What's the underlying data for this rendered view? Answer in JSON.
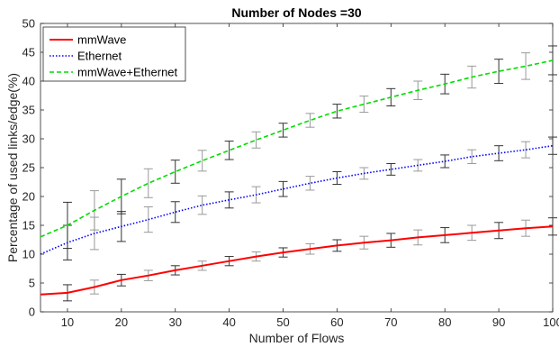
{
  "chart_data": {
    "type": "line",
    "title": "Number of Nodes =30",
    "xlabel": "Number of Flows",
    "ylabel": "Percentage of used links/edge(%)",
    "xlim": [
      5,
      100
    ],
    "ylim": [
      0,
      50
    ],
    "xticks": [
      10,
      20,
      30,
      40,
      50,
      60,
      70,
      80,
      90,
      100
    ],
    "yticks": [
      0,
      5,
      10,
      15,
      20,
      25,
      30,
      35,
      40,
      45,
      50
    ],
    "grid": false,
    "legend_position": "top-left",
    "x": [
      5,
      10,
      15,
      20,
      25,
      30,
      35,
      40,
      45,
      50,
      55,
      60,
      65,
      70,
      75,
      80,
      85,
      90,
      95,
      100
    ],
    "series": [
      {
        "name": "mmWave",
        "color": "#ff0000",
        "dash": "solid",
        "values": [
          3.0,
          3.3,
          4.3,
          5.5,
          6.3,
          7.2,
          8.0,
          8.8,
          9.6,
          10.3,
          10.9,
          11.5,
          12.0,
          12.4,
          12.9,
          13.3,
          13.7,
          14.1,
          14.5,
          14.8
        ],
        "errors": [
          null,
          1.4,
          1.2,
          1.0,
          0.9,
          0.8,
          0.8,
          0.8,
          0.8,
          0.8,
          0.9,
          1.0,
          1.1,
          1.2,
          1.3,
          1.3,
          1.3,
          1.4,
          1.4,
          1.5
        ]
      },
      {
        "name": "Ethernet",
        "color": "#0000ff",
        "dash": "dotted",
        "values": [
          10.0,
          12.0,
          13.6,
          14.8,
          16.0,
          17.3,
          18.5,
          19.4,
          20.3,
          21.3,
          22.3,
          23.2,
          24.0,
          24.7,
          25.4,
          26.1,
          26.9,
          27.5,
          28.1,
          28.8
        ],
        "errors": [
          null,
          3.0,
          2.8,
          2.6,
          2.2,
          1.8,
          1.6,
          1.4,
          1.4,
          1.3,
          1.2,
          1.1,
          1.0,
          1.0,
          1.0,
          1.1,
          1.2,
          1.3,
          1.4,
          1.5
        ]
      },
      {
        "name": "mmWave+Ethernet",
        "color": "#00dd00",
        "dash": "dashed",
        "values": [
          13.0,
          15.0,
          17.6,
          20.0,
          22.3,
          24.3,
          26.2,
          28.0,
          29.8,
          31.5,
          33.2,
          34.8,
          36.0,
          37.2,
          38.4,
          39.5,
          40.7,
          41.7,
          42.6,
          43.6
        ],
        "errors": [
          null,
          4.0,
          3.4,
          3.0,
          2.5,
          2.0,
          1.8,
          1.6,
          1.4,
          1.2,
          1.2,
          1.2,
          1.4,
          1.5,
          1.6,
          1.7,
          1.9,
          2.1,
          2.3,
          2.5
        ]
      }
    ]
  }
}
